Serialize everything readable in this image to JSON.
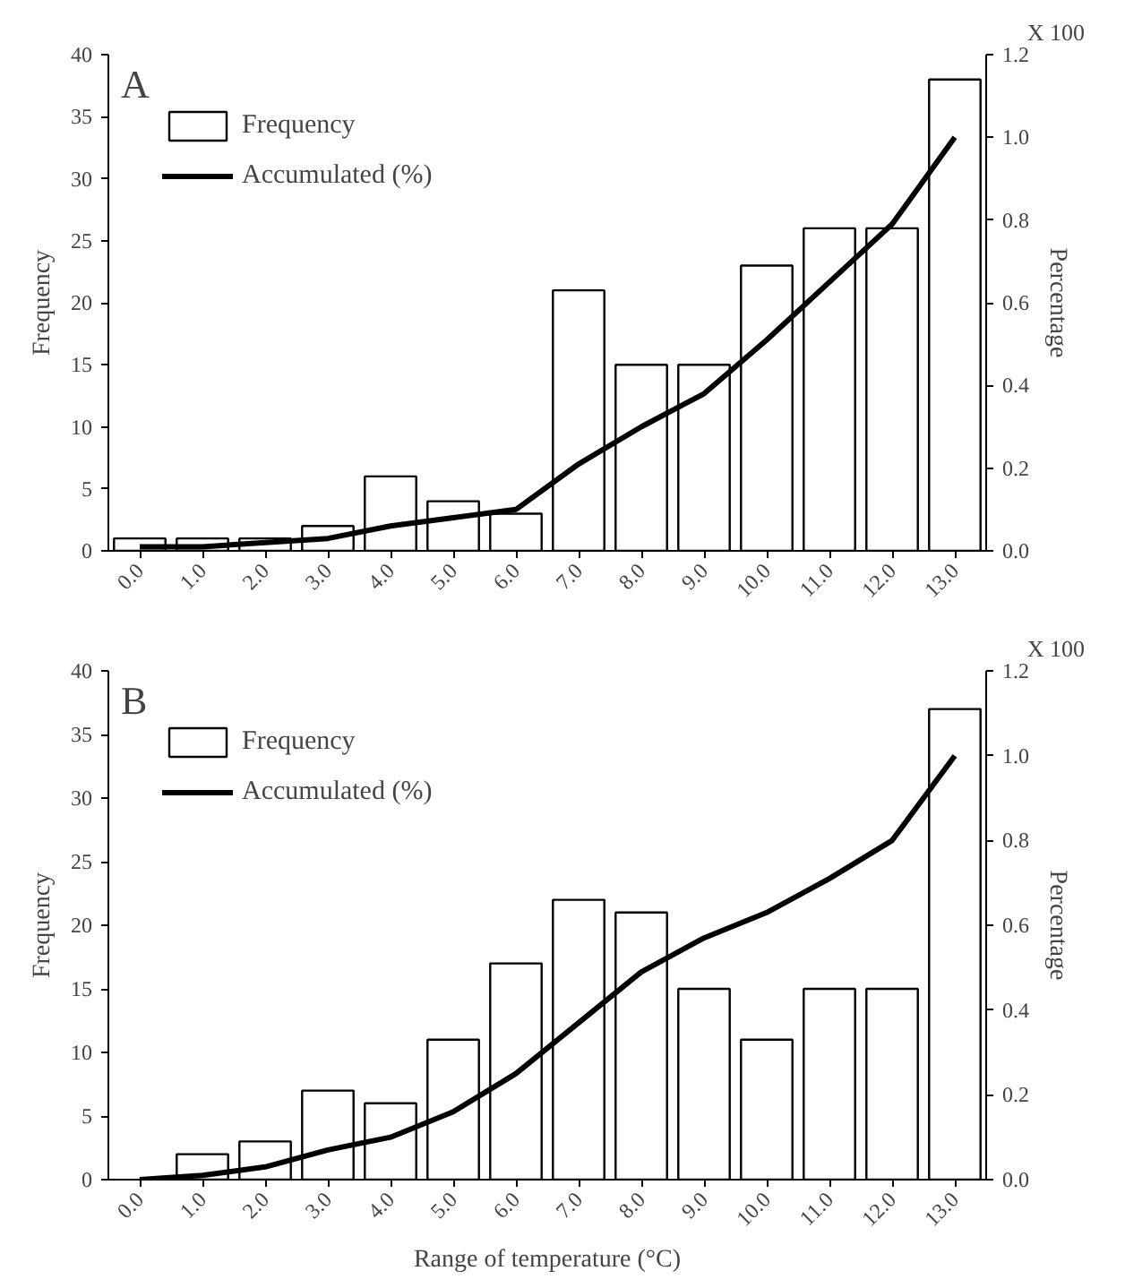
{
  "chart_data": [
    {
      "type": "bar",
      "title": "A",
      "ylabel": "Frequency",
      "y2label": "Percentage",
      "annotations": [
        "X 100"
      ],
      "categories": [
        "0.0",
        "1.0",
        "2.0",
        "3.0",
        "4.0",
        "5.0",
        "6.0",
        "7.0",
        "8.0",
        "9.0",
        "10.0",
        "11.0",
        "12.0",
        "13.0"
      ],
      "series": [
        {
          "name": "Frequency",
          "color": "#ffffff",
          "values": [
            1,
            1,
            1,
            2,
            6,
            4,
            3,
            21,
            15,
            15,
            23,
            26,
            26,
            38
          ]
        },
        {
          "name": "Accumulated (%)",
          "type": "line",
          "axis": "y2",
          "color": "#000000",
          "values": [
            0.01,
            0.01,
            0.02,
            0.03,
            0.06,
            0.08,
            0.1,
            0.21,
            0.3,
            0.38,
            0.51,
            0.65,
            0.79,
            1.0
          ]
        }
      ],
      "ylim": [
        0,
        40
      ],
      "yticks": [
        0,
        5,
        10,
        15,
        20,
        25,
        30,
        35,
        40
      ],
      "y2lim": [
        0,
        1.2
      ],
      "y2ticks": [
        {
          "value": 0,
          "label": "0.0"
        },
        {
          "value": 0.2,
          "label": "0.2"
        },
        {
          "value": 0.4,
          "label": "0.4"
        },
        {
          "value": 0.6,
          "label": "0.6"
        },
        {
          "value": 0.8,
          "label": "0.8"
        },
        {
          "value": 1.0,
          "label": "1.0"
        },
        {
          "value": 1.2,
          "label": "1.2"
        }
      ],
      "grid": false,
      "legend": "top left"
    },
    {
      "type": "bar",
      "title": "B",
      "xlabel": "Range of temperature (°C)",
      "ylabel": "Frequency",
      "y2label": "Percentage",
      "annotations": [
        "X 100"
      ],
      "categories": [
        "0.0",
        "1.0",
        "2.0",
        "3.0",
        "4.0",
        "5.0",
        "6.0",
        "7.0",
        "8.0",
        "9.0",
        "10.0",
        "11.0",
        "12.0",
        "13.0"
      ],
      "series": [
        {
          "name": "Frequency",
          "color": "#ffffff",
          "values": [
            0,
            2,
            3,
            7,
            6,
            11,
            17,
            22,
            21,
            15,
            11,
            15,
            15,
            37
          ]
        },
        {
          "name": "Accumulated (%)",
          "type": "line",
          "axis": "y2",
          "color": "#000000",
          "values": [
            0,
            0.01,
            0.03,
            0.07,
            0.1,
            0.16,
            0.25,
            0.37,
            0.49,
            0.57,
            0.63,
            0.71,
            0.8,
            1.0
          ]
        }
      ],
      "ylim": [
        0,
        40
      ],
      "yticks": [
        0,
        5,
        10,
        15,
        20,
        25,
        30,
        35,
        40
      ],
      "y2lim": [
        0,
        1.2
      ],
      "y2ticks": [
        {
          "value": 0,
          "label": "0.0"
        },
        {
          "value": 0.2,
          "label": "0.2"
        },
        {
          "value": 0.4,
          "label": "0.4"
        },
        {
          "value": 0.6,
          "label": "0.6"
        },
        {
          "value": 0.8,
          "label": "0.8"
        },
        {
          "value": 1.0,
          "label": "1.0"
        },
        {
          "value": 1.2,
          "label": "1.2"
        }
      ],
      "grid": false,
      "legend": "top left"
    }
  ]
}
